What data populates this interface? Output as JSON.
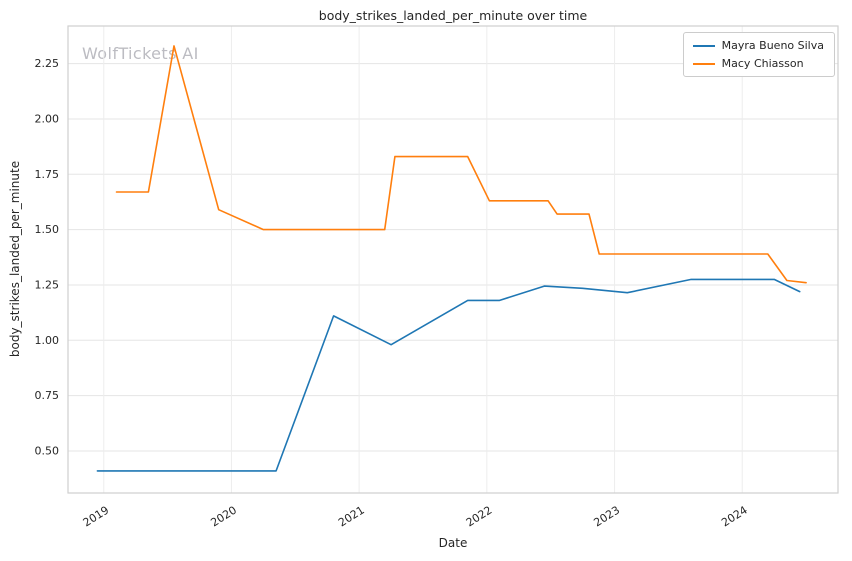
{
  "watermark": "WolfTickets AI",
  "chart_data": {
    "type": "line",
    "title": "body_strikes_landed_per_minute over time",
    "xlabel": "Date",
    "ylabel": "body_strikes_landed_per_minute",
    "xlim": [
      2018.72,
      2024.75
    ],
    "ylim": [
      0.31,
      2.42
    ],
    "xticks": [
      2019,
      2020,
      2021,
      2022,
      2023,
      2024
    ],
    "xtick_labels": [
      "2019",
      "2020",
      "2021",
      "2022",
      "2023",
      "2024"
    ],
    "yticks": [
      0.5,
      0.75,
      1.0,
      1.25,
      1.5,
      1.75,
      2.0,
      2.25
    ],
    "ytick_labels": [
      "0.50",
      "0.75",
      "1.00",
      "1.25",
      "1.50",
      "1.75",
      "2.00",
      "2.25"
    ],
    "grid": true,
    "legend_position": "upper right",
    "series": [
      {
        "name": "Mayra Bueno Silva",
        "color": "#1f77b4",
        "points": [
          [
            2018.95,
            0.41
          ],
          [
            2019.6,
            0.41
          ],
          [
            2020.35,
            0.41
          ],
          [
            2020.8,
            1.11
          ],
          [
            2021.25,
            0.98
          ],
          [
            2021.85,
            1.18
          ],
          [
            2022.1,
            1.18
          ],
          [
            2022.45,
            1.245
          ],
          [
            2022.75,
            1.235
          ],
          [
            2023.1,
            1.215
          ],
          [
            2023.6,
            1.275
          ],
          [
            2023.95,
            1.275
          ],
          [
            2024.25,
            1.275
          ],
          [
            2024.45,
            1.22
          ]
        ]
      },
      {
        "name": "Macy Chiasson",
        "color": "#ff7f0e",
        "points": [
          [
            2019.1,
            1.67
          ],
          [
            2019.35,
            1.67
          ],
          [
            2019.55,
            2.33
          ],
          [
            2019.9,
            1.59
          ],
          [
            2020.25,
            1.5
          ],
          [
            2021.2,
            1.5
          ],
          [
            2021.28,
            1.83
          ],
          [
            2021.85,
            1.83
          ],
          [
            2022.02,
            1.63
          ],
          [
            2022.48,
            1.63
          ],
          [
            2022.55,
            1.57
          ],
          [
            2022.8,
            1.57
          ],
          [
            2022.88,
            1.39
          ],
          [
            2023.3,
            1.39
          ],
          [
            2024.2,
            1.39
          ],
          [
            2024.35,
            1.27
          ],
          [
            2024.5,
            1.26
          ]
        ]
      }
    ]
  }
}
